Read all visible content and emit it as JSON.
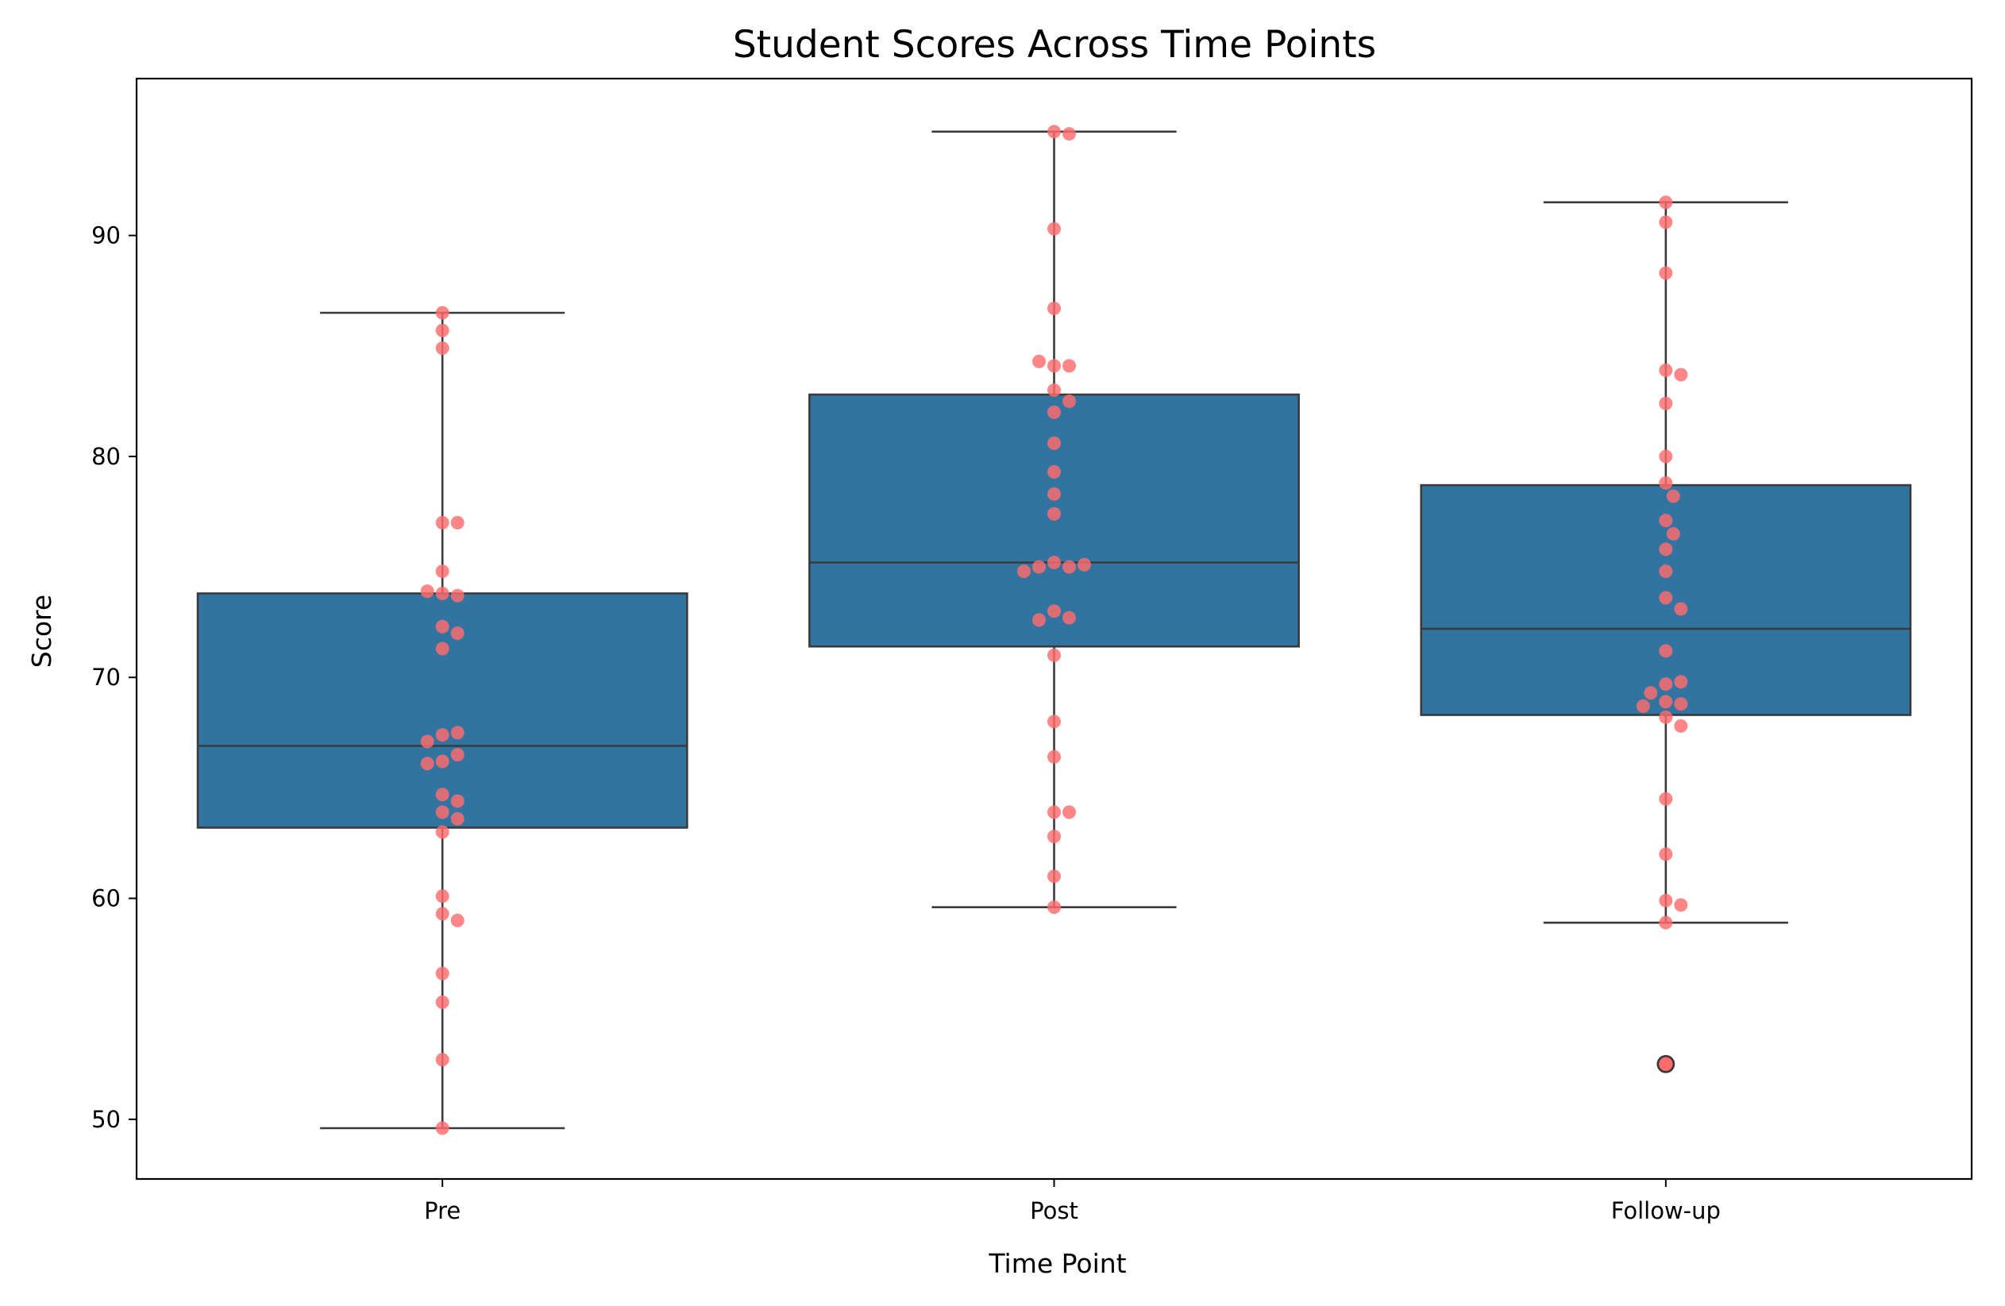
{
  "chart_data": {
    "type": "box",
    "title": "Student Scores Across Time Points",
    "xlabel": "Time Point",
    "ylabel": "Score",
    "categories": [
      "Pre",
      "Post",
      "Follow-up"
    ],
    "ylim": [
      47.3,
      97.1
    ],
    "yticks": [
      50,
      60,
      70,
      80,
      90
    ],
    "grid": false,
    "colors": {
      "box": "#3274a1",
      "edge": "#3a3a3a",
      "points": "#ff6b6b"
    },
    "boxes": [
      {
        "category": "Pre",
        "whisker_low": 49.6,
        "q1": 63.2,
        "median": 66.9,
        "q3": 73.8,
        "whisker_high": 86.5,
        "outliers": []
      },
      {
        "category": "Post",
        "whisker_low": 59.6,
        "q1": 71.4,
        "median": 75.2,
        "q3": 82.8,
        "whisker_high": 94.7,
        "outliers": []
      },
      {
        "category": "Follow-up",
        "whisker_low": 58.9,
        "q1": 68.3,
        "median": 72.2,
        "q3": 78.7,
        "whisker_high": 91.5,
        "outliers": [
          52.5
        ]
      }
    ],
    "points": [
      {
        "category": "Pre",
        "values": [
          86.5,
          85.7,
          84.9,
          77.0,
          77.0,
          74.8,
          73.8,
          73.7,
          73.9,
          72.3,
          72.0,
          71.3,
          67.4,
          67.5,
          67.1,
          66.2,
          66.5,
          66.1,
          64.7,
          64.4,
          63.9,
          63.6,
          63.0,
          60.1,
          59.3,
          59.0,
          56.6,
          55.3,
          52.7,
          49.6
        ]
      },
      {
        "category": "Post",
        "values": [
          94.7,
          94.6,
          90.3,
          86.7,
          84.1,
          84.1,
          84.3,
          83.0,
          82.5,
          82.0,
          80.6,
          79.3,
          78.3,
          77.4,
          75.2,
          75.0,
          75.0,
          75.1,
          74.8,
          73.0,
          72.7,
          72.6,
          71.0,
          68.0,
          66.4,
          63.9,
          63.9,
          62.8,
          61.0,
          59.6
        ]
      },
      {
        "category": "Follow-up",
        "values": [
          91.5,
          90.6,
          88.3,
          83.9,
          83.7,
          82.4,
          80.0,
          78.8,
          78.2,
          77.1,
          76.5,
          75.8,
          74.8,
          73.6,
          73.1,
          71.2,
          69.7,
          69.8,
          69.3,
          68.9,
          68.8,
          68.7,
          68.2,
          67.8,
          64.5,
          62.0,
          59.9,
          59.7,
          58.9,
          52.5
        ]
      }
    ]
  }
}
